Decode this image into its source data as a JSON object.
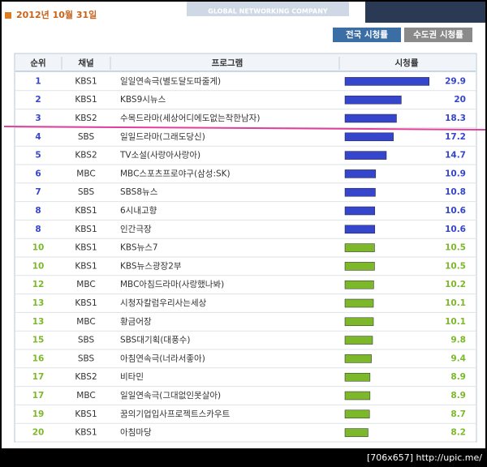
{
  "header": {
    "date": "2012년 10월 31일",
    "company": "GLOBAL NETWORKING COMPANY"
  },
  "tabs": [
    {
      "label": "전국 시청률",
      "active": true
    },
    {
      "label": "수도권 시청률",
      "active": false
    }
  ],
  "table": {
    "columns": [
      "순위",
      "채널",
      "프로그램",
      "시청률"
    ],
    "rows": [
      {
        "rank": 1,
        "channel": "KBS1",
        "program": "일일연속극(별도달도따줄게)",
        "rating": 29.9,
        "color": "#3545cc"
      },
      {
        "rank": 2,
        "channel": "KBS1",
        "program": "KBS9시뉴스",
        "rating": 20,
        "color": "#3545cc"
      },
      {
        "rank": 3,
        "channel": "KBS2",
        "program": "수목드라마(세상어디에도없는착한남자)",
        "rating": 18.3,
        "color": "#3545cc"
      },
      {
        "rank": 4,
        "channel": "SBS",
        "program": "일일드라마(그래도당신)",
        "rating": 17.2,
        "color": "#3545cc"
      },
      {
        "rank": 5,
        "channel": "KBS2",
        "program": "TV소설(사랑아사랑아)",
        "rating": 14.7,
        "color": "#3545cc"
      },
      {
        "rank": 6,
        "channel": "MBC",
        "program": "MBC스포츠프로야구(삼성:SK)",
        "rating": 10.9,
        "color": "#3545cc"
      },
      {
        "rank": 7,
        "channel": "SBS",
        "program": "SBS8뉴스",
        "rating": 10.8,
        "color": "#3545cc"
      },
      {
        "rank": 8,
        "channel": "KBS1",
        "program": "6시내고향",
        "rating": 10.6,
        "color": "#3545cc"
      },
      {
        "rank": 8,
        "channel": "KBS1",
        "program": "인간극장",
        "rating": 10.6,
        "color": "#3545cc"
      },
      {
        "rank": 10,
        "channel": "KBS1",
        "program": "KBS뉴스7",
        "rating": 10.5,
        "color": "#7cb82a"
      },
      {
        "rank": 10,
        "channel": "KBS1",
        "program": "KBS뉴스광장2부",
        "rating": 10.5,
        "color": "#7cb82a"
      },
      {
        "rank": 12,
        "channel": "MBC",
        "program": "MBC아침드라마(사랑했나봐)",
        "rating": 10.2,
        "color": "#7cb82a"
      },
      {
        "rank": 13,
        "channel": "KBS1",
        "program": "시청자칼럼우리사는세상",
        "rating": 10.1,
        "color": "#7cb82a"
      },
      {
        "rank": 13,
        "channel": "MBC",
        "program": "황금어장",
        "rating": 10.1,
        "color": "#7cb82a"
      },
      {
        "rank": 15,
        "channel": "SBS",
        "program": "SBS대기획(대풍수)",
        "rating": 9.8,
        "color": "#7cb82a"
      },
      {
        "rank": 16,
        "channel": "SBS",
        "program": "아침연속극(너라서좋아)",
        "rating": 9.4,
        "color": "#7cb82a"
      },
      {
        "rank": 17,
        "channel": "KBS2",
        "program": "비타민",
        "rating": 8.9,
        "color": "#7cb82a"
      },
      {
        "rank": 17,
        "channel": "MBC",
        "program": "일일연속극(그대없인못살아)",
        "rating": 8.9,
        "color": "#7cb82a"
      },
      {
        "rank": 19,
        "channel": "KBS1",
        "program": "꿈의기업입사프로젝트스카우트",
        "rating": 8.7,
        "color": "#7cb82a"
      },
      {
        "rank": 20,
        "channel": "KBS1",
        "program": "아침마당",
        "rating": 8.2,
        "color": "#7cb82a"
      }
    ]
  },
  "footer": "[706x657] http://upic.me/"
}
